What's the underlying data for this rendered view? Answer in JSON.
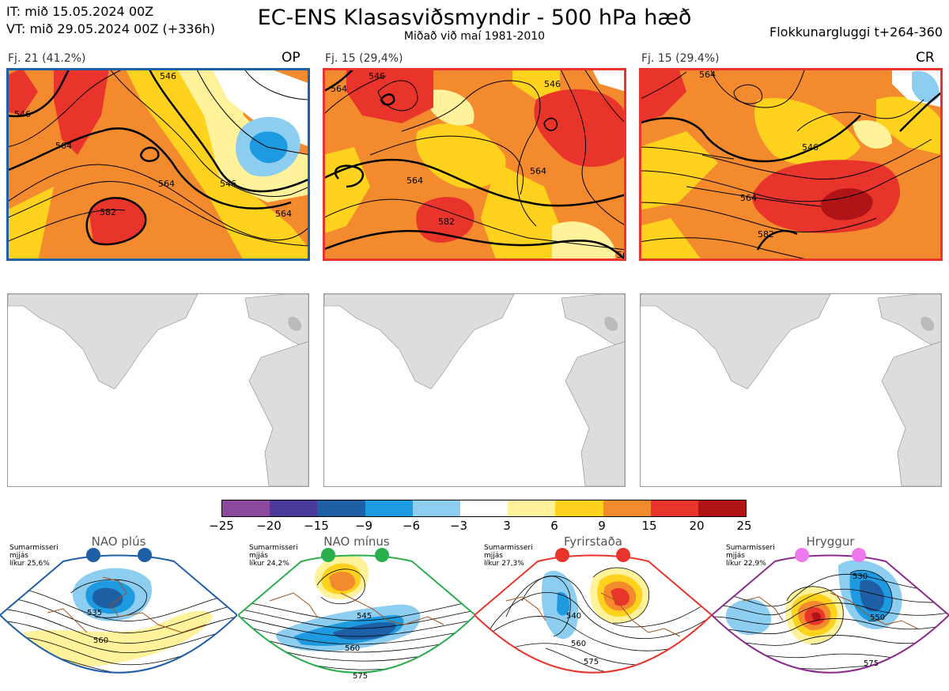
{
  "header": {
    "it_line": "IT: mið 15.05.2024 00Z",
    "vt_line": "VT: mið 29.05.2024 00Z  (+336h)",
    "title": "EC-ENS Klasasviðsmyndir - 500 hPa hæð",
    "subtitle": "Miðað við maí 1981-2010",
    "window": "Flokkunargluggi t+264-360"
  },
  "clusters": [
    {
      "count_label": "Fj. 21 (41.2%)",
      "tag": "OP",
      "frame_color": "#1f5fa8",
      "contour_labels": [
        "546",
        "564",
        "546",
        "564",
        "582",
        "546",
        "564"
      ]
    },
    {
      "count_label": "Fj. 15 (29,4%)",
      "tag": "",
      "frame_color": "#e8342a",
      "contour_labels": [
        "564",
        "546",
        "564",
        "582",
        "546",
        "564",
        "564"
      ]
    },
    {
      "count_label": "Fj. 15 (29.4%)",
      "tag": "CR",
      "frame_color": "#e8342a",
      "contour_labels": [
        "564",
        "546",
        "564",
        "582"
      ]
    }
  ],
  "colorbar": {
    "colors": [
      "#8b4a9e",
      "#4a3a9a",
      "#1e5fa5",
      "#1e9be0",
      "#8ccdf0",
      "#ffffff",
      "#fff29a",
      "#ffd21e",
      "#f48a2e",
      "#e8342a",
      "#b11416"
    ],
    "labels": [
      "−25",
      "−20",
      "−15",
      "−9",
      "−6",
      "−3",
      "3",
      "6",
      "9",
      "15",
      "20",
      "25"
    ]
  },
  "regimes": [
    {
      "name": "NAO plús",
      "season": "Sumarmisseri",
      "spread": "mjjás",
      "likelihood": "líkur 25,6%",
      "color": "#1f5fa8",
      "dot_color": "#1f5fa8",
      "contours": [
        "535",
        "560"
      ]
    },
    {
      "name": "NAO mínus",
      "season": "Sumarmisseri",
      "spread": "mjjás",
      "likelihood": "líkur 24,2%",
      "color": "#2bae4c",
      "dot_color": "#2bae4c",
      "contours": [
        "545",
        "560",
        "575"
      ]
    },
    {
      "name": "Fyrirstaða",
      "season": "Sumarmisseri",
      "spread": "mjjás",
      "likelihood": "líkur 27,3%",
      "color": "#e8342a",
      "dot_color": "#e8342a",
      "contours": [
        "540",
        "560",
        "575"
      ]
    },
    {
      "name": "Hryggur",
      "season": "Sumarmisseri",
      "spread": "mjjás",
      "likelihood": "líkur 22,9%",
      "color": "#8a2a8a",
      "dot_color": "#ee78ee",
      "contours": [
        "530",
        "550",
        "575"
      ]
    }
  ]
}
